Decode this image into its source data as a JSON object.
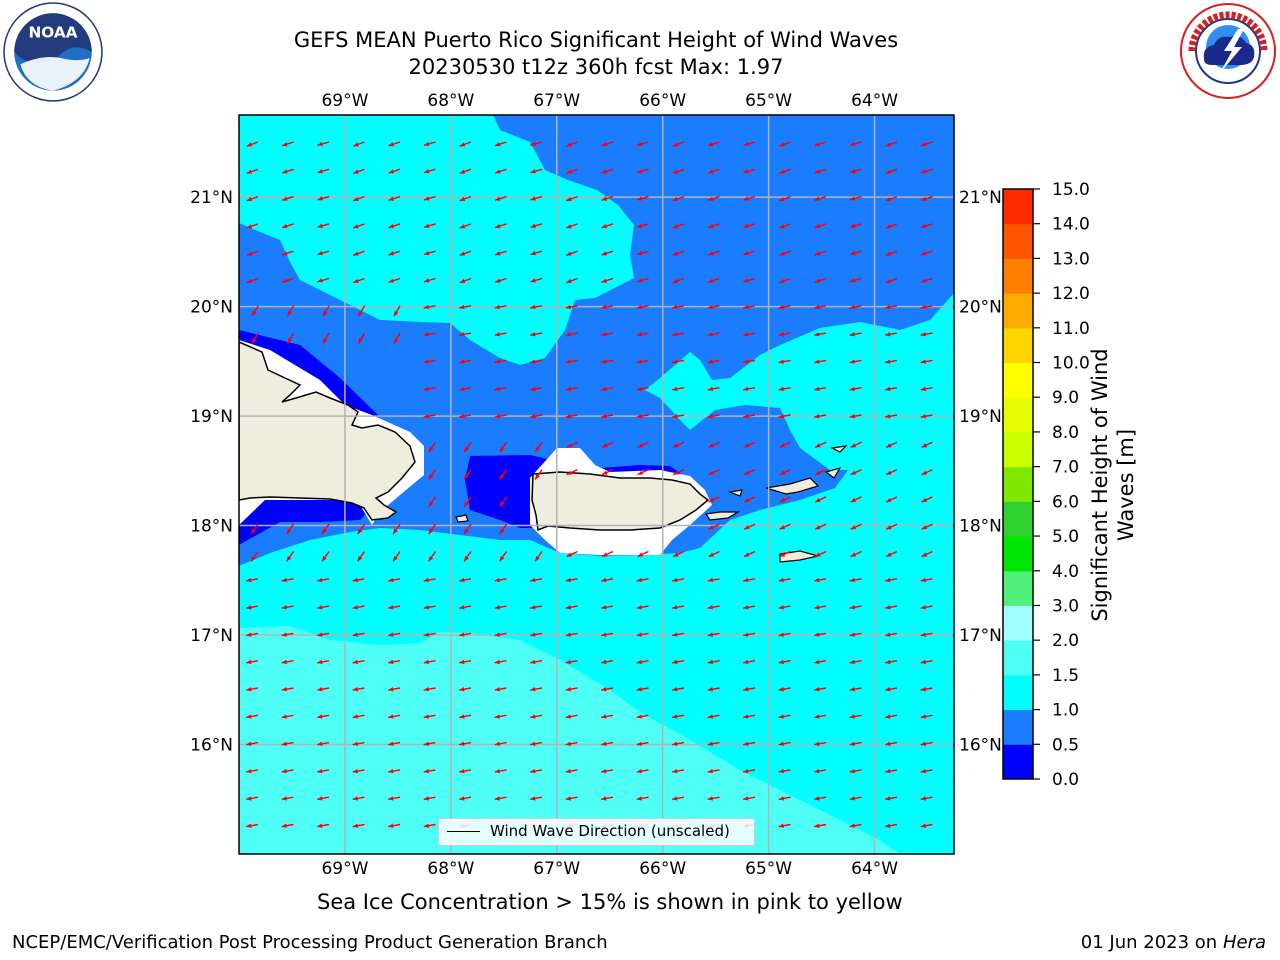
{
  "header": {
    "title_line1": "GEFS MEAN Puerto Rico Significant Height of Wind Waves",
    "title_line2": "20230530 t12z 360h fcst   Max: 1.97"
  },
  "logos": {
    "left": "noaa-logo",
    "right": "nws-logo"
  },
  "map": {
    "lon_ticks": [
      "69°W",
      "68°W",
      "67°W",
      "66°W",
      "65°W",
      "64°W"
    ],
    "lat_ticks": [
      "21°N",
      "20°N",
      "19°N",
      "18°N",
      "17°N",
      "16°N"
    ],
    "lon_range": [
      -70.0,
      -63.25
    ],
    "lat_range": [
      15.0,
      21.75
    ],
    "legend_label": "Wind Wave Direction (unscaled)",
    "arrow_color": "#ff0000",
    "land_color": "#efedde",
    "grid": true
  },
  "colorbar": {
    "label_line1": "Significant Height of Wind",
    "label_line2": "Waves [m]",
    "levels": [
      "0.0",
      "0.5",
      "1.0",
      "1.5",
      "2.0",
      "3.0",
      "4.0",
      "5.0",
      "6.0",
      "7.0",
      "8.0",
      "9.0",
      "10.0",
      "11.0",
      "12.0",
      "13.0",
      "14.0",
      "15.0"
    ],
    "colors": [
      "#0000ff",
      "#1a7cff",
      "#00ffff",
      "#4dfff4",
      "#a0ffff",
      "#50f07a",
      "#00e600",
      "#2ed12e",
      "#7fe800",
      "#ccff00",
      "#e6ff00",
      "#ffff00",
      "#ffd500",
      "#ffaa00",
      "#ff8000",
      "#ff5500",
      "#ff2a00"
    ]
  },
  "footer": {
    "note": "Sea Ice Concentration > 15% is shown in pink to yellow",
    "credit": "NCEP/EMC/Verification Post Processing Product Generation Branch",
    "date": "01 Jun 2023 on",
    "host": "Hera"
  }
}
